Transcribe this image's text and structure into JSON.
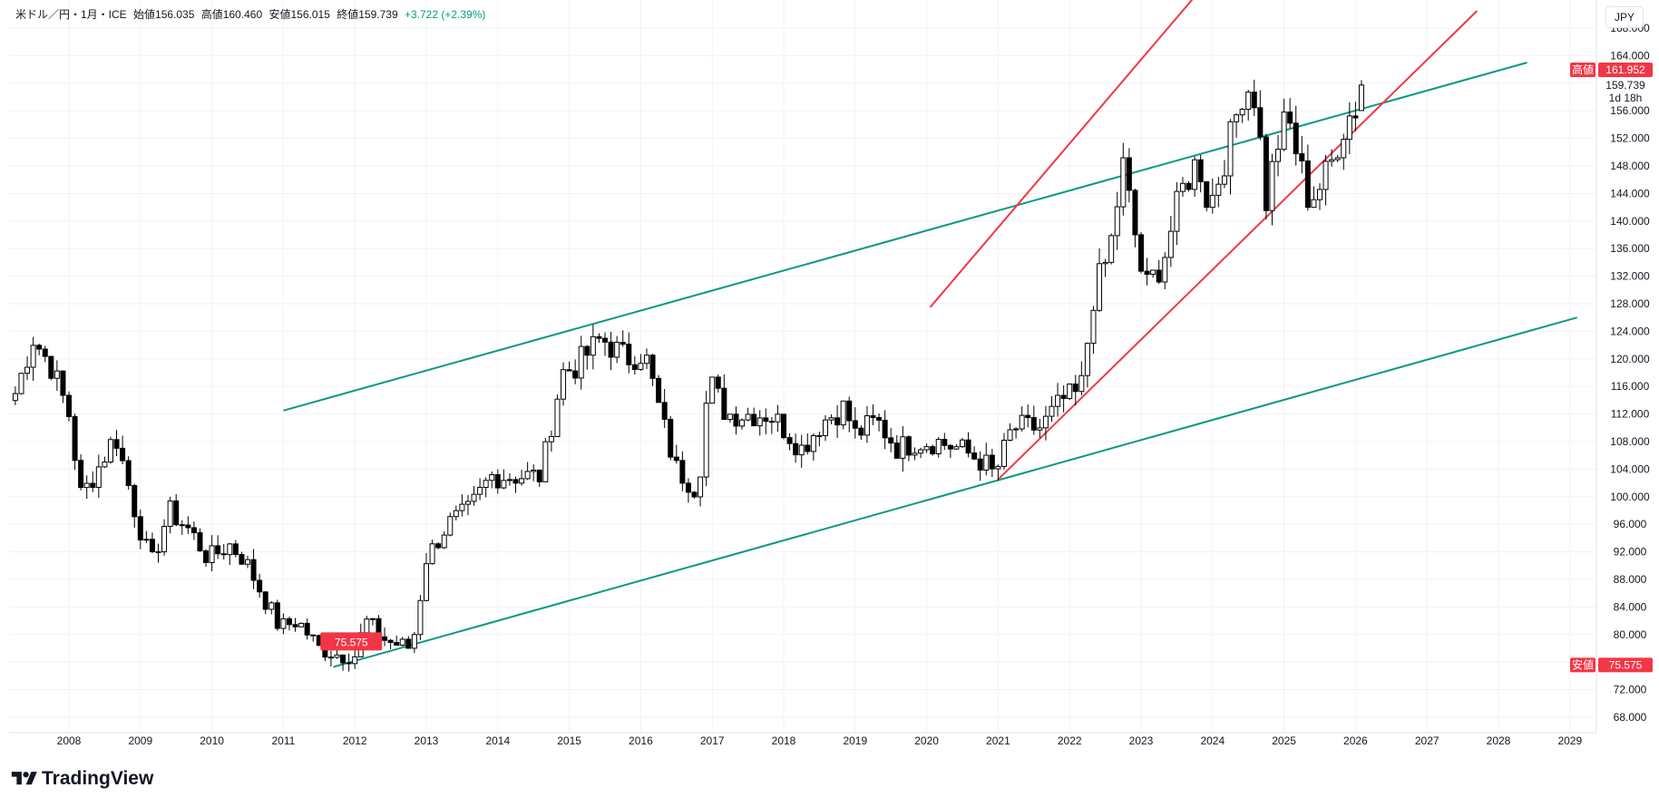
{
  "legend": {
    "symbol": "米ドル／円・1月・ICE",
    "open": "始値156.035",
    "high": "高値160.460",
    "low": "安値156.015",
    "close": "終値159.739",
    "change": "+3.722 (+2.39%)"
  },
  "currency_button": "JPY",
  "brand": "TradingView",
  "colors": {
    "up": "#ffffff",
    "down": "#000000",
    "wick": "#000000",
    "channel_teal": "#089981",
    "channel_red": "#f23645",
    "grid": "#f0f3fa",
    "tag_red": "#f23645"
  },
  "chart_data": {
    "type": "candlestick",
    "interval": "1M",
    "y_axis": {
      "side": "right",
      "min": 66,
      "max": 170,
      "ticks": [
        "68.000",
        "72.000",
        "76.000",
        "80.000",
        "84.000",
        "88.000",
        "92.000",
        "96.000",
        "100.000",
        "104.000",
        "108.000",
        "112.000",
        "116.000",
        "120.000",
        "124.000",
        "128.000",
        "132.000",
        "136.000",
        "140.000",
        "144.000",
        "148.000",
        "152.000",
        "156.000",
        "160.000",
        "164.000",
        "168.000"
      ]
    },
    "x_axis": {
      "ticks": [
        "2008",
        "2009",
        "2010",
        "2011",
        "2012",
        "2013",
        "2014",
        "2015",
        "2016",
        "2017",
        "2018",
        "2019",
        "2020",
        "2021",
        "2022",
        "2023",
        "2024",
        "2025",
        "2026",
        "2027",
        "2028",
        "2029"
      ],
      "start_year": 2007.2,
      "end_year": 2030.0
    },
    "grid": true,
    "price_labels": [
      {
        "label": "高値",
        "value": "161.952",
        "price": 161.952
      },
      {
        "label": "",
        "value": "159.739",
        "price": 159.739,
        "sub": "1d 18h"
      },
      {
        "label": "安値",
        "value": "75.575",
        "price": 75.575
      }
    ],
    "in_chart_label": {
      "text": "75.575",
      "year": 2011.95,
      "price": 75.575
    },
    "trendlines": [
      {
        "color": "teal",
        "from": [
          2011.0,
          112.5
        ],
        "to": [
          2028.4,
          163.0
        ]
      },
      {
        "color": "teal",
        "from": [
          2011.7,
          75.3
        ],
        "to": [
          2029.1,
          126.0
        ]
      },
      {
        "color": "red",
        "from": [
          2020.05,
          127.5
        ],
        "to": [
          2023.95,
          175.0
        ]
      },
      {
        "color": "red",
        "from": [
          2021.0,
          102.5
        ],
        "to": [
          2027.7,
          170.5
        ]
      }
    ],
    "anchors": [
      [
        2007.25,
        115
      ],
      [
        2007.5,
        123
      ],
      [
        2007.75,
        119
      ],
      [
        2008.0,
        112
      ],
      [
        2008.17,
        100
      ],
      [
        2008.4,
        104
      ],
      [
        2008.65,
        109
      ],
      [
        2008.95,
        97
      ],
      [
        2009.15,
        90
      ],
      [
        2009.4,
        98
      ],
      [
        2009.7,
        95
      ],
      [
        2009.95,
        91
      ],
      [
        2010.25,
        93
      ],
      [
        2010.45,
        91
      ],
      [
        2010.75,
        85
      ],
      [
        2010.95,
        81
      ],
      [
        2011.2,
        82
      ],
      [
        2011.5,
        78
      ],
      [
        2011.8,
        77
      ],
      [
        2012.0,
        77
      ],
      [
        2012.15,
        82
      ],
      [
        2012.45,
        79
      ],
      [
        2012.8,
        78
      ],
      [
        2013.0,
        91
      ],
      [
        2013.3,
        96
      ],
      [
        2013.6,
        98
      ],
      [
        2013.9,
        103
      ],
      [
        2014.2,
        103
      ],
      [
        2014.6,
        103
      ],
      [
        2014.9,
        118
      ],
      [
        2015.1,
        119
      ],
      [
        2015.45,
        123
      ],
      [
        2015.8,
        120
      ],
      [
        2016.05,
        121
      ],
      [
        2016.35,
        109
      ],
      [
        2016.5,
        104
      ],
      [
        2016.8,
        101
      ],
      [
        2016.95,
        117
      ],
      [
        2017.2,
        112
      ],
      [
        2017.5,
        112
      ],
      [
        2017.8,
        112
      ],
      [
        2018.0,
        110
      ],
      [
        2018.25,
        107
      ],
      [
        2018.55,
        111
      ],
      [
        2018.85,
        113
      ],
      [
        2019.0,
        109
      ],
      [
        2019.3,
        111
      ],
      [
        2019.6,
        107
      ],
      [
        2019.85,
        108
      ],
      [
        2020.15,
        108
      ],
      [
        2020.45,
        107
      ],
      [
        2020.8,
        105
      ],
      [
        2020.95,
        103
      ],
      [
        2021.2,
        110
      ],
      [
        2021.6,
        110
      ],
      [
        2021.9,
        114
      ],
      [
        2022.15,
        115
      ],
      [
        2022.35,
        130
      ],
      [
        2022.55,
        135
      ],
      [
        2022.75,
        148
      ],
      [
        2022.9,
        139
      ],
      [
        2023.05,
        130
      ],
      [
        2023.3,
        134
      ],
      [
        2023.55,
        144
      ],
      [
        2023.8,
        149
      ],
      [
        2023.95,
        142
      ],
      [
        2024.2,
        150
      ],
      [
        2024.45,
        160
      ],
      [
        2024.6,
        158
      ],
      [
        2024.75,
        143
      ],
      [
        2024.9,
        151
      ],
      [
        2025.05,
        155
      ],
      [
        2025.2,
        149
      ],
      [
        2025.35,
        143
      ],
      [
        2025.5,
        145
      ],
      [
        2025.65,
        148
      ],
      [
        2025.8,
        153
      ],
      [
        2025.95,
        156
      ],
      [
        2026.1,
        157
      ],
      [
        2026.15,
        159.739
      ]
    ]
  }
}
